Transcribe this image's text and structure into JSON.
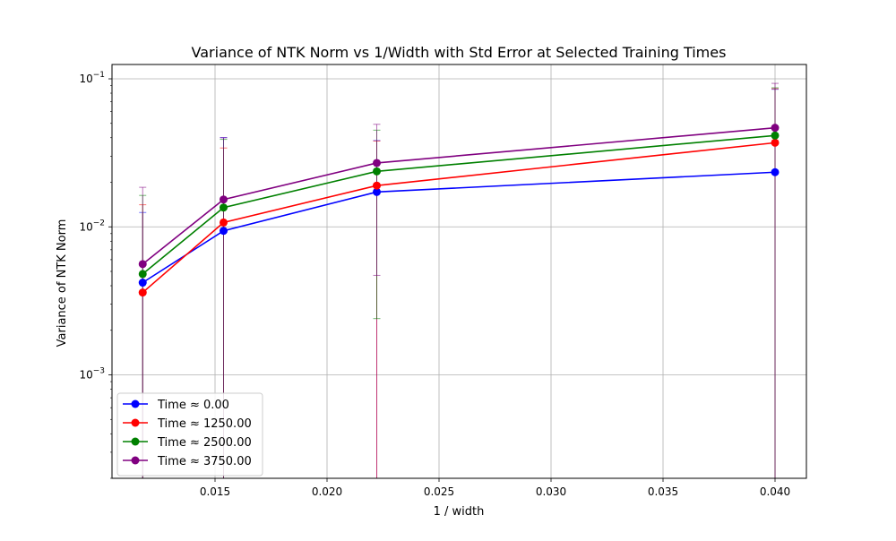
{
  "chart_data": {
    "type": "line",
    "title": "Variance of NTK Norm vs 1/Width with Std Error at Selected Training Times",
    "xlabel": "1 / width",
    "ylabel": "Variance of NTK Norm",
    "yscale": "log",
    "xlim": [
      0.0104,
      0.0414
    ],
    "ylim": [
      0.0002,
      0.125
    ],
    "xticks": [
      {
        "value": 0.015,
        "label": "0.015"
      },
      {
        "value": 0.02,
        "label": "0.020"
      },
      {
        "value": 0.025,
        "label": "0.025"
      },
      {
        "value": 0.03,
        "label": "0.030"
      },
      {
        "value": 0.035,
        "label": "0.035"
      },
      {
        "value": 0.04,
        "label": "0.040"
      }
    ],
    "yticks": [
      {
        "value": 0.001,
        "base": "10",
        "exp": "−3"
      },
      {
        "value": 0.01,
        "base": "10",
        "exp": "−2"
      },
      {
        "value": 0.1,
        "base": "10",
        "exp": "−1"
      }
    ],
    "grid": true,
    "legend_position": "lower-left",
    "x": [
      0.01177,
      0.01538,
      0.02222,
      0.04
    ],
    "series": [
      {
        "name": "Time ≈ 0.00",
        "color": "#0000ff",
        "values": [
          0.0042,
          0.0094,
          0.0172,
          0.0234
        ],
        "err": [
          0.0083,
          0.0307,
          0.0211,
          0.0616
        ]
      },
      {
        "name": "Time ≈ 1250.00",
        "color": "#ff0000",
        "values": [
          0.0036,
          0.0107,
          0.019,
          0.037
        ],
        "err": [
          0.0105,
          0.0234,
          0.019,
          0.0487
        ]
      },
      {
        "name": "Time ≈ 2500.00",
        "color": "#008000",
        "values": [
          0.0048,
          0.0135,
          0.0237,
          0.0414
        ],
        "err": [
          0.0115,
          0.0255,
          0.0213,
          0.0456
        ]
      },
      {
        "name": "Time ≈ 3750.00",
        "color": "#800080",
        "values": [
          0.0056,
          0.0153,
          0.027,
          0.0467
        ],
        "err": [
          0.0129,
          0.0247,
          0.0223,
          0.0465
        ]
      }
    ]
  }
}
